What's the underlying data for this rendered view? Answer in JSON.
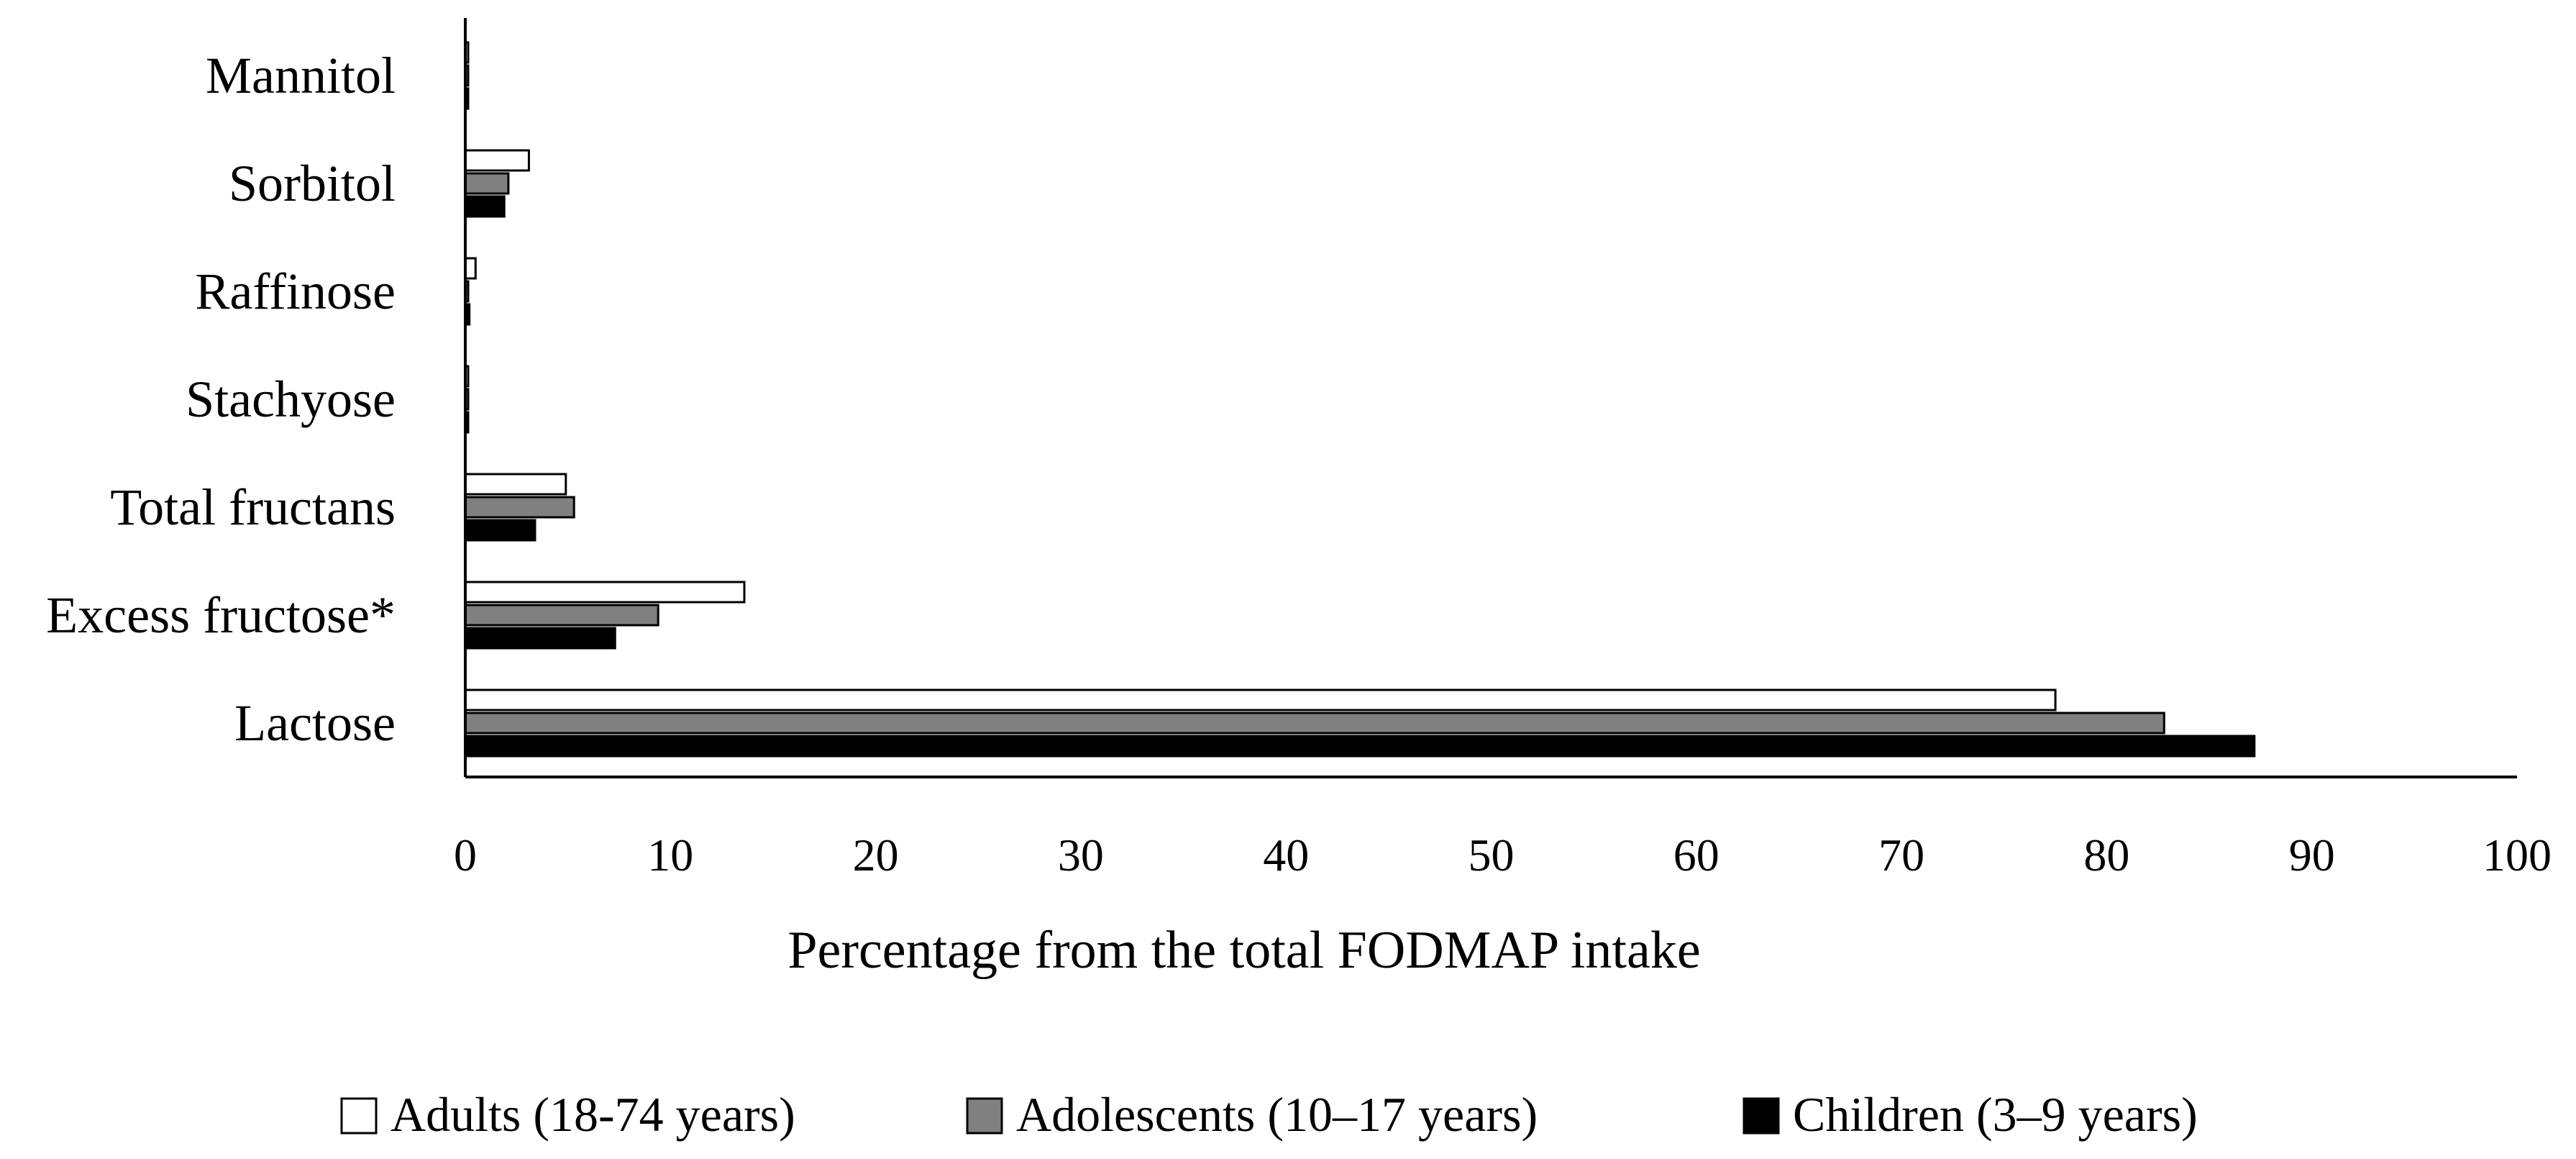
{
  "chart_data": {
    "type": "bar",
    "orientation": "horizontal",
    "categories": [
      "Mannitol",
      "Sorbitol",
      "Raffinose",
      "Stachyose",
      "Total fructans",
      "Excess fructose*",
      "Lactose"
    ],
    "series": [
      {
        "name": "Adults (18-74 years)",
        "color": "#ffffff",
        "values": [
          0.1,
          3.1,
          0.5,
          0.1,
          4.9,
          13.6,
          77.5
        ]
      },
      {
        "name": "Adolescents (10–17 years)",
        "color": "#808080",
        "values": [
          0.1,
          2.1,
          0.1,
          0.1,
          5.3,
          9.4,
          82.8
        ]
      },
      {
        "name": "Children (3–9 years)",
        "color": "#000000",
        "values": [
          0.1,
          1.9,
          0.2,
          0.1,
          3.4,
          7.3,
          87.2
        ]
      }
    ],
    "xlabel": "Percentage from  the total FODMAP intake",
    "ylabel": "",
    "title": "",
    "xlim": [
      0,
      100
    ],
    "xticks": [
      "0",
      "10",
      "20",
      "30",
      "40",
      "50",
      "60",
      "70",
      "80",
      "90",
      "100"
    ],
    "grid": false,
    "legend_position": "bottom"
  }
}
